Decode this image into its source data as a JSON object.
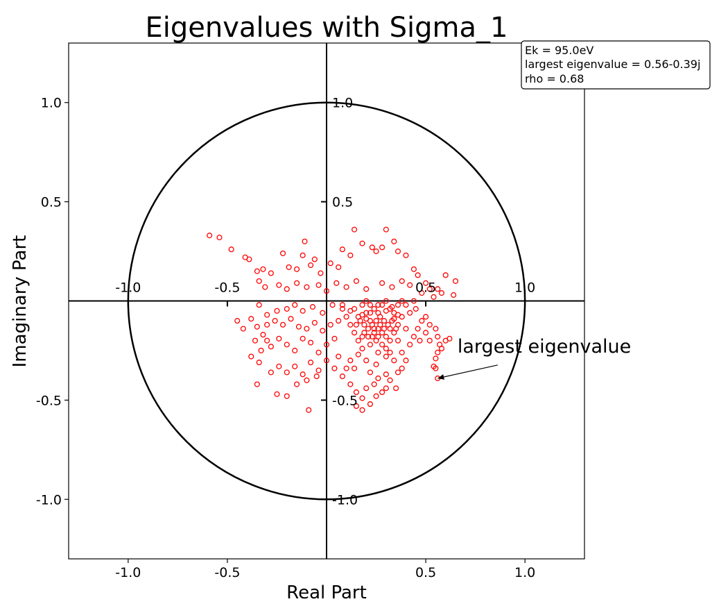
{
  "chart_data": {
    "type": "scatter",
    "title": "Eigenvalues with Sigma_1",
    "xlabel": "Real Part",
    "ylabel": "Imaginary Part",
    "xlim": [
      -1.3,
      1.3
    ],
    "ylim": [
      -1.3,
      1.3
    ],
    "xticks": [
      -1.0,
      -0.5,
      0.5,
      1.0
    ],
    "xtick_labels": [
      "-1.0",
      "-0.5",
      "0.5",
      "1.0"
    ],
    "yticks": [
      1.0,
      0.5,
      -0.5,
      -1.0
    ],
    "ytick_labels": [
      "1.0",
      "0.5",
      "-0.5",
      "-1.0"
    ],
    "center_x_ticks": [
      -1.0,
      -0.5,
      0.5,
      1.0
    ],
    "center_x_tick_labels": [
      "-1.0",
      "-0.5",
      "0.5",
      "1.0"
    ],
    "center_y_ticks": [
      1.0,
      0.5,
      -0.5,
      -1.0
    ],
    "center_y_tick_labels": [
      "1.0",
      "0.5",
      "-0.5",
      "-1.0"
    ],
    "unit_circle": true,
    "grid": false,
    "marker_color": "#ff0000",
    "marker": "hollow-circle",
    "info_box": {
      "lines": [
        "Ek = 95.0eV",
        "largest eigenvalue = 0.56-0.39j",
        "rho = 0.68"
      ],
      "placement": "top-right"
    },
    "annotation": {
      "text": "largest eigenvalue",
      "point": [
        0.56,
        -0.39
      ],
      "text_position": [
        0.66,
        -0.26
      ]
    },
    "points": [
      [
        -0.59,
        0.33
      ],
      [
        -0.54,
        0.32
      ],
      [
        -0.48,
        0.26
      ],
      [
        -0.41,
        0.22
      ],
      [
        -0.39,
        0.21
      ],
      [
        -0.35,
        0.15
      ],
      [
        -0.32,
        0.16
      ],
      [
        -0.28,
        0.14
      ],
      [
        -0.22,
        0.24
      ],
      [
        -0.19,
        0.17
      ],
      [
        -0.15,
        0.16
      ],
      [
        -0.12,
        0.23
      ],
      [
        -0.11,
        0.3
      ],
      [
        -0.08,
        0.18
      ],
      [
        -0.06,
        0.21
      ],
      [
        -0.03,
        0.14
      ],
      [
        0.02,
        0.19
      ],
      [
        0.06,
        0.17
      ],
      [
        0.08,
        0.26
      ],
      [
        0.12,
        0.23
      ],
      [
        0.14,
        0.36
      ],
      [
        0.18,
        0.29
      ],
      [
        0.23,
        0.27
      ],
      [
        0.25,
        0.25
      ],
      [
        0.28,
        0.27
      ],
      [
        0.3,
        0.36
      ],
      [
        0.34,
        0.3
      ],
      [
        0.36,
        0.25
      ],
      [
        0.4,
        0.23
      ],
      [
        0.44,
        0.16
      ],
      [
        0.46,
        0.13
      ],
      [
        0.5,
        0.09
      ],
      [
        0.52,
        0.06
      ],
      [
        0.56,
        0.06
      ],
      [
        0.6,
        0.13
      ],
      [
        0.65,
        0.1
      ],
      [
        0.64,
        0.03
      ],
      [
        -0.34,
        0.1
      ],
      [
        -0.31,
        0.07
      ],
      [
        -0.24,
        0.08
      ],
      [
        -0.2,
        0.06
      ],
      [
        -0.15,
        0.09
      ],
      [
        -0.1,
        0.07
      ],
      [
        -0.04,
        0.08
      ],
      [
        0.0,
        0.05
      ],
      [
        0.05,
        0.09
      ],
      [
        0.1,
        0.07
      ],
      [
        0.15,
        0.1
      ],
      [
        0.2,
        0.06
      ],
      [
        0.28,
        0.09
      ],
      [
        0.33,
        0.07
      ],
      [
        0.38,
        0.1
      ],
      [
        0.42,
        0.08
      ],
      [
        0.48,
        0.04
      ],
      [
        0.54,
        0.02
      ],
      [
        0.58,
        0.04
      ],
      [
        -0.34,
        -0.02
      ],
      [
        -0.3,
        -0.07
      ],
      [
        -0.25,
        -0.05
      ],
      [
        -0.2,
        -0.04
      ],
      [
        -0.16,
        -0.02
      ],
      [
        -0.12,
        -0.05
      ],
      [
        -0.07,
        -0.03
      ],
      [
        -0.02,
        -0.06
      ],
      [
        0.03,
        -0.02
      ],
      [
        0.08,
        -0.04
      ],
      [
        0.12,
        -0.05
      ],
      [
        -0.45,
        -0.1
      ],
      [
        -0.42,
        -0.14
      ],
      [
        -0.38,
        -0.09
      ],
      [
        -0.35,
        -0.13
      ],
      [
        -0.32,
        -0.17
      ],
      [
        -0.3,
        -0.12
      ],
      [
        -0.26,
        -0.1
      ],
      [
        -0.22,
        -0.12
      ],
      [
        -0.18,
        -0.09
      ],
      [
        -0.14,
        -0.13
      ],
      [
        -0.1,
        -0.14
      ],
      [
        -0.06,
        -0.11
      ],
      [
        -0.02,
        -0.15
      ],
      [
        0.02,
        -0.12
      ],
      [
        0.06,
        -0.1
      ],
      [
        -0.36,
        -0.2
      ],
      [
        -0.33,
        -0.25
      ],
      [
        -0.3,
        -0.2
      ],
      [
        -0.28,
        -0.23
      ],
      [
        -0.24,
        -0.19
      ],
      [
        -0.2,
        -0.22
      ],
      [
        -0.16,
        -0.25
      ],
      [
        -0.12,
        -0.19
      ],
      [
        -0.08,
        -0.21
      ],
      [
        -0.04,
        -0.26
      ],
      [
        0.0,
        -0.22
      ],
      [
        0.04,
        -0.19
      ],
      [
        -0.38,
        -0.28
      ],
      [
        -0.34,
        -0.31
      ],
      [
        -0.28,
        -0.36
      ],
      [
        -0.24,
        -0.33
      ],
      [
        -0.2,
        -0.36
      ],
      [
        -0.16,
        -0.33
      ],
      [
        -0.12,
        -0.37
      ],
      [
        -0.08,
        -0.31
      ],
      [
        -0.04,
        -0.35
      ],
      [
        0.0,
        -0.3
      ],
      [
        0.04,
        -0.34
      ],
      [
        -0.35,
        -0.42
      ],
      [
        -0.25,
        -0.47
      ],
      [
        -0.2,
        -0.48
      ],
      [
        -0.15,
        -0.42
      ],
      [
        -0.1,
        -0.4
      ],
      [
        -0.05,
        -0.38
      ],
      [
        -0.09,
        -0.55
      ],
      [
        0.08,
        -0.38
      ],
      [
        0.12,
        -0.42
      ],
      [
        0.15,
        -0.46
      ],
      [
        0.18,
        -0.49
      ],
      [
        0.15,
        -0.53
      ],
      [
        0.18,
        -0.55
      ],
      [
        0.22,
        -0.52
      ],
      [
        0.25,
        -0.48
      ],
      [
        0.28,
        -0.46
      ],
      [
        0.2,
        -0.44
      ],
      [
        0.24,
        -0.42
      ],
      [
        0.3,
        -0.44
      ],
      [
        0.32,
        -0.4
      ],
      [
        0.35,
        -0.44
      ],
      [
        0.38,
        -0.34
      ],
      [
        0.4,
        -0.3
      ],
      [
        0.36,
        -0.36
      ],
      [
        0.3,
        -0.37
      ],
      [
        0.26,
        -0.39
      ],
      [
        0.22,
        -0.36
      ],
      [
        0.12,
        -0.3
      ],
      [
        0.16,
        -0.27
      ],
      [
        0.2,
        -0.3
      ],
      [
        0.25,
        -0.32
      ],
      [
        0.1,
        -0.34
      ],
      [
        0.06,
        -0.28
      ],
      [
        0.14,
        -0.34
      ],
      [
        0.34,
        -0.3
      ],
      [
        0.3,
        -0.28
      ],
      [
        0.38,
        -0.26
      ],
      [
        0.42,
        -0.22
      ],
      [
        0.44,
        -0.18
      ],
      [
        0.46,
        -0.14
      ],
      [
        0.48,
        -0.1
      ],
      [
        0.5,
        -0.08
      ],
      [
        0.52,
        -0.12
      ],
      [
        0.55,
        -0.14
      ],
      [
        0.56,
        -0.18
      ],
      [
        0.57,
        -0.22
      ],
      [
        0.56,
        -0.26
      ],
      [
        0.55,
        -0.29
      ],
      [
        0.54,
        -0.33
      ],
      [
        0.55,
        -0.34
      ],
      [
        0.56,
        -0.39
      ],
      [
        0.6,
        -0.2
      ],
      [
        0.62,
        -0.19
      ],
      [
        0.58,
        -0.24
      ],
      [
        0.52,
        -0.2
      ],
      [
        0.5,
        -0.16
      ],
      [
        0.47,
        -0.2
      ],
      [
        0.45,
        -0.04
      ],
      [
        0.42,
        -0.06
      ],
      [
        0.4,
        -0.02
      ],
      [
        0.44,
        0.0
      ],
      [
        0.08,
        -0.02
      ],
      [
        0.1,
        -0.08
      ],
      [
        0.12,
        -0.12
      ],
      [
        0.14,
        -0.16
      ],
      [
        0.16,
        -0.2
      ],
      [
        0.18,
        -0.24
      ],
      [
        0.14,
        -0.04
      ],
      [
        0.16,
        -0.08
      ],
      [
        0.18,
        -0.02
      ],
      [
        0.2,
        -0.06
      ],
      [
        0.22,
        -0.1
      ],
      [
        0.24,
        -0.14
      ],
      [
        0.26,
        -0.18
      ],
      [
        0.28,
        -0.22
      ],
      [
        0.3,
        -0.24
      ],
      [
        0.32,
        -0.2
      ],
      [
        0.34,
        -0.16
      ],
      [
        0.36,
        -0.12
      ],
      [
        0.38,
        -0.08
      ],
      [
        0.4,
        -0.14
      ],
      [
        0.36,
        -0.2
      ],
      [
        0.32,
        -0.26
      ],
      [
        0.26,
        -0.26
      ],
      [
        0.22,
        -0.22
      ],
      [
        0.18,
        -0.18
      ],
      [
        0.2,
        0.0
      ],
      [
        0.22,
        -0.02
      ],
      [
        0.24,
        -0.04
      ],
      [
        0.26,
        -0.06
      ],
      [
        0.28,
        -0.02
      ],
      [
        0.3,
        0.0
      ],
      [
        0.32,
        -0.04
      ],
      [
        0.34,
        -0.06
      ],
      [
        0.36,
        -0.02
      ],
      [
        0.38,
        0.0
      ],
      [
        0.27,
        -0.08
      ],
      [
        0.29,
        -0.1
      ],
      [
        0.31,
        -0.12
      ],
      [
        0.33,
        -0.1
      ],
      [
        0.25,
        -0.1
      ],
      [
        0.23,
        -0.12
      ],
      [
        0.21,
        -0.14
      ],
      [
        0.19,
        -0.12
      ],
      [
        0.17,
        -0.1
      ],
      [
        0.15,
        -0.12
      ],
      [
        0.24,
        -0.16
      ],
      [
        0.26,
        -0.14
      ],
      [
        0.28,
        -0.16
      ],
      [
        0.3,
        -0.18
      ],
      [
        0.32,
        -0.14
      ],
      [
        0.22,
        -0.06
      ],
      [
        0.2,
        -0.09
      ],
      [
        0.18,
        -0.07
      ],
      [
        0.26,
        -0.02
      ],
      [
        0.3,
        -0.05
      ],
      [
        0.34,
        -0.09
      ],
      [
        0.36,
        -0.07
      ],
      [
        0.33,
        -0.03
      ],
      [
        0.29,
        -0.14
      ],
      [
        0.27,
        -0.12
      ],
      [
        0.25,
        -0.2
      ],
      [
        0.23,
        -0.18
      ],
      [
        0.21,
        -0.18
      ],
      [
        0.19,
        -0.16
      ],
      [
        0.35,
        -0.14
      ]
    ]
  }
}
